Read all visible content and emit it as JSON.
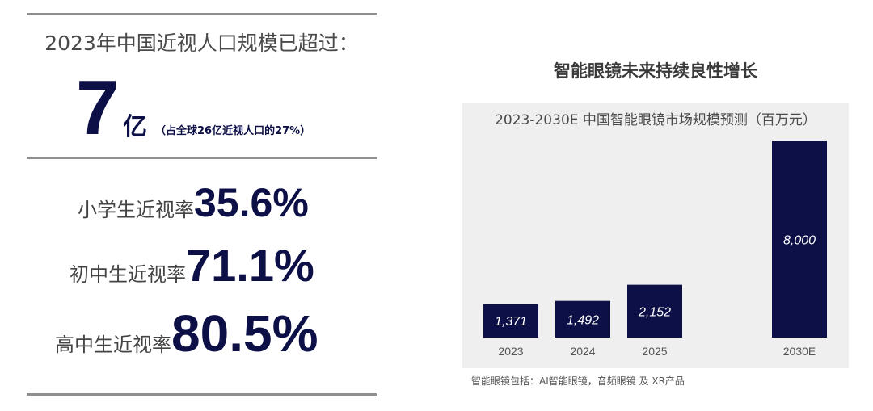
{
  "left_panel": {
    "headline": "2023年中国近视人口规模已超过：",
    "big_number": "7",
    "big_unit": "亿",
    "big_note": "（占全球26亿近视人口的27%）",
    "rates": [
      {
        "label": "小学生近视率",
        "value": "35.6%"
      },
      {
        "label": "初中生近视率",
        "value": "71.1%"
      },
      {
        "label": "高中生近视率",
        "value": "80.5%"
      }
    ]
  },
  "chart_header": "智能眼镜未来持续良性增长",
  "footnote": "智能眼镜包括：AI智能眼镜，音频眼镜 及 XR产品",
  "colors": {
    "bar": "#0d1047",
    "panel": "#efefef",
    "accent_text": "#0d1047"
  },
  "chart_data": {
    "type": "bar",
    "title": "2023-2030E 中国智能眼镜市场规模预测（百万元）",
    "categories": [
      "2023",
      "2024",
      "2025",
      "2030E"
    ],
    "values": [
      1371,
      1492,
      2152,
      8000
    ],
    "value_labels": [
      "1,371",
      "1,492",
      "2,152",
      "8,000"
    ],
    "xlabel": "",
    "ylabel": "",
    "ylim": [
      0,
      8000
    ],
    "grid": false,
    "legend": "none"
  }
}
